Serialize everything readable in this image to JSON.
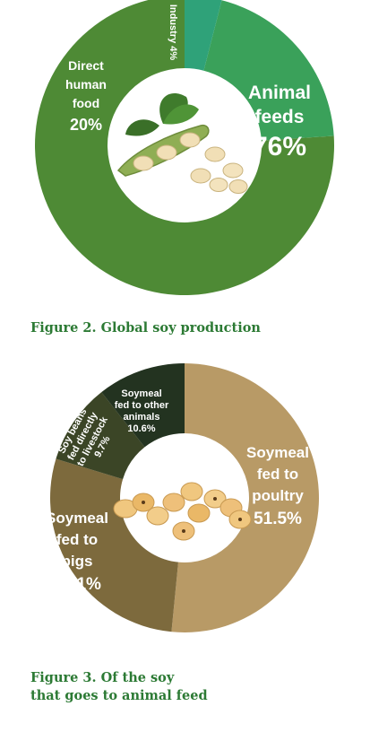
{
  "chart_data": [
    {
      "type": "pie",
      "categories": [
        "Animal feeds",
        "Direct human food",
        "Industry"
      ],
      "values": [
        76,
        20,
        4
      ],
      "labels": [
        [
          "Animal",
          "feeds",
          "76%"
        ],
        [
          "Direct",
          "human",
          "food",
          "20%"
        ],
        [
          "Industry 4%"
        ]
      ],
      "colors": [
        "#4e8a35",
        "#3aa15a",
        "#2fa279"
      ],
      "title": "Figure 2. Global soy production"
    },
    {
      "type": "pie",
      "categories": [
        "Soymeal fed to poultry",
        "Soymeal fed to pigs",
        "Soy beans fed directly to livestock",
        "Soymeal fed to other animals"
      ],
      "values": [
        51.5,
        28.1,
        9.7,
        10.6
      ],
      "labels": [
        [
          "Soymeal",
          "fed to",
          "poultry",
          "51.5%"
        ],
        [
          "Soymeal",
          "fed to",
          "pigs",
          "28.1%"
        ],
        [
          "Soy beans",
          "fed directly",
          "to livestock",
          "9.7%"
        ],
        [
          "Soymeal",
          "fed to other",
          "animals",
          "10.6%"
        ]
      ],
      "colors": [
        "#b89a66",
        "#7d6a3d",
        "#3b4526",
        "#233320"
      ],
      "title_lines": [
        "Figure 3. Of the soy",
        "that goes to animal feed"
      ]
    }
  ]
}
